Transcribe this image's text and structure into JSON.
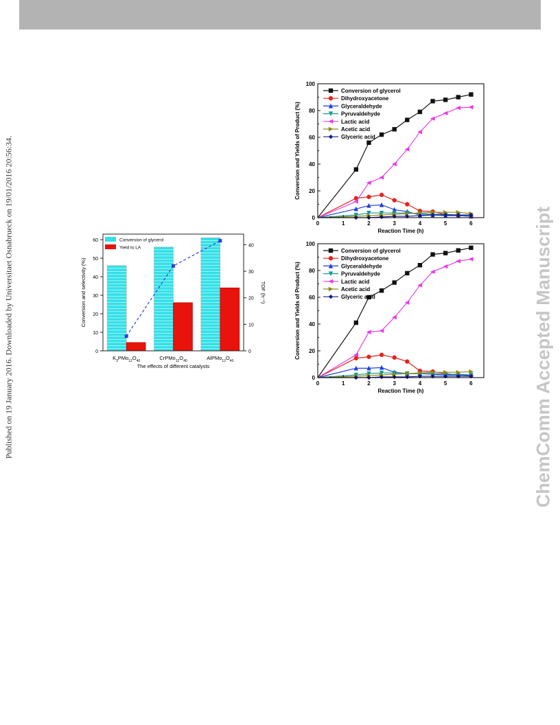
{
  "header": {
    "bar_color": "#b3b3b3"
  },
  "side_left_text": "Published on 19 January 2016. Downloaded by Universitaet Osnabrueck on 19/01/2016 20:56:34.",
  "side_right_text": "ChemComm Accepted Manuscript",
  "chart_data": [
    {
      "type": "bar",
      "xlabel": "The effects of different catalysts",
      "ylabel": "Conversion and selectivity (%)",
      "y2label": "TOF (h⁻¹)",
      "categories": [
        {
          "parts": [
            [
              "K",
              "normal"
            ],
            [
              "3",
              "sub"
            ],
            [
              "PMo",
              "normal"
            ],
            [
              "12",
              "sub"
            ],
            [
              "O",
              "normal"
            ],
            [
              "40",
              "sub"
            ]
          ]
        },
        {
          "parts": [
            [
              "CrPMo",
              "normal"
            ],
            [
              "12",
              "sub"
            ],
            [
              "O",
              "normal"
            ],
            [
              "40",
              "sub"
            ]
          ]
        },
        {
          "parts": [
            [
              "AlPMo",
              "normal"
            ],
            [
              "12",
              "sub"
            ],
            [
              "O",
              "normal"
            ],
            [
              "40",
              "sub"
            ]
          ]
        }
      ],
      "ylim": [
        0,
        63
      ],
      "yticks": [
        0,
        10,
        20,
        30,
        40,
        50,
        60
      ],
      "y2lim": [
        0,
        44
      ],
      "y2ticks": [
        0,
        10,
        20,
        30,
        40
      ],
      "series": [
        {
          "name": "Conversion of glycerol",
          "kind": "bar",
          "color": "#33e0e8",
          "values": [
            46,
            56,
            61
          ]
        },
        {
          "name": "Yield to LA",
          "kind": "bar",
          "color": "#e8130d",
          "values": [
            4.5,
            26,
            34
          ]
        },
        {
          "kind": "line",
          "axis": "y2",
          "color": "#2b3fd6",
          "values": [
            5.5,
            32,
            41.5
          ]
        }
      ],
      "legend_position": "top-left"
    },
    {
      "type": "line",
      "xlabel": "Reaction Time (h)",
      "ylabel": "Conversion and Yields of Product (%)",
      "xlim": [
        0,
        6.5
      ],
      "xticks": [
        0,
        1,
        2,
        3,
        4,
        5,
        6
      ],
      "ylim": [
        0,
        100
      ],
      "yticks": [
        0,
        20,
        40,
        60,
        80,
        100
      ],
      "x": [
        0,
        1.5,
        2,
        2.5,
        3,
        3.5,
        4,
        4.5,
        5,
        5.5,
        6
      ],
      "legend_position": "top-left",
      "series": [
        {
          "name": "Conversion of glycerol",
          "color": "#111111",
          "marker": "square",
          "values": [
            0,
            36,
            56,
            62,
            66,
            73,
            79,
            87,
            88,
            90,
            92
          ]
        },
        {
          "name": "Dihydroxyacetone",
          "color": "#e8231c",
          "marker": "circle",
          "values": [
            0,
            14.5,
            15.5,
            17,
            13,
            10,
            5,
            4.5,
            2.5,
            1.5,
            1
          ]
        },
        {
          "name": "Glyceraldehyde",
          "color": "#1f3ee0",
          "marker": "triangle-up",
          "values": [
            0,
            6.5,
            9,
            9.5,
            6,
            4.5,
            2,
            2,
            1.5,
            1.5,
            1
          ]
        },
        {
          "name": "Pyruvaldehyde",
          "color": "#149b9b",
          "marker": "triangle-down",
          "values": [
            0,
            2,
            3.5,
            3.5,
            3.5,
            3.5,
            3,
            2.5,
            2.5,
            2,
            1.5
          ]
        },
        {
          "name": "Lactic acid",
          "color": "#e63ce6",
          "marker": "triangle-left",
          "values": [
            0,
            12,
            26,
            30,
            40,
            51,
            64,
            74,
            78,
            82,
            82.5
          ]
        },
        {
          "name": "Acetic acid",
          "color": "#8f8a14",
          "marker": "triangle-right",
          "values": [
            0,
            1,
            1.5,
            2,
            2.5,
            3,
            3.5,
            4,
            4,
            4,
            3
          ]
        },
        {
          "name": "Glyceric acid",
          "color": "#141a8c",
          "marker": "diamond",
          "values": [
            0,
            0,
            0,
            0.5,
            1,
            1,
            1.5,
            2,
            2,
            2,
            2
          ]
        }
      ]
    },
    {
      "type": "line",
      "xlabel": "Reaction Time (h)",
      "ylabel": "Conversion and Yields of Product (%)",
      "xlim": [
        0,
        6.5
      ],
      "xticks": [
        0,
        1,
        2,
        3,
        4,
        5,
        6
      ],
      "ylim": [
        0,
        100
      ],
      "yticks": [
        0,
        20,
        40,
        60,
        80,
        100
      ],
      "x": [
        0,
        1.5,
        2,
        2.5,
        3,
        3.5,
        4,
        4.5,
        5,
        5.5,
        6
      ],
      "legend_position": "top-left",
      "series": [
        {
          "name": "Conversion of glycerol",
          "color": "#111111",
          "marker": "square",
          "values": [
            0,
            41,
            60,
            65,
            71,
            78,
            84,
            92,
            93,
            95,
            97
          ]
        },
        {
          "name": "Dihydroxyacetone",
          "color": "#e8231c",
          "marker": "circle",
          "values": [
            0,
            14.5,
            15.5,
            17,
            15,
            12,
            5,
            4.5,
            3,
            2,
            1.5
          ]
        },
        {
          "name": "Glyceraldehyde",
          "color": "#1f3ee0",
          "marker": "triangle-up",
          "values": [
            0,
            7,
            7,
            7.5,
            4,
            3,
            3,
            2.5,
            2,
            2,
            1.5
          ]
        },
        {
          "name": "Pyruvaldehyde",
          "color": "#149b9b",
          "marker": "triangle-down",
          "values": [
            0,
            2,
            3,
            3.5,
            3.5,
            3,
            3,
            3,
            2.5,
            2.5,
            2
          ]
        },
        {
          "name": "Lactic acid",
          "color": "#e63ce6",
          "marker": "triangle-left",
          "values": [
            0,
            17,
            34,
            35,
            45,
            56,
            69,
            79,
            83,
            87,
            88.5
          ]
        },
        {
          "name": "Acetic acid",
          "color": "#8f8a14",
          "marker": "triangle-right",
          "values": [
            0,
            1,
            1.5,
            2,
            2.5,
            3,
            3.5,
            4,
            4,
            4,
            4.5
          ]
        },
        {
          "name": "Glyceric acid",
          "color": "#141a8c",
          "marker": "diamond",
          "values": [
            0,
            0,
            0,
            0.5,
            0.5,
            0.5,
            1,
            1,
            1,
            1,
            1
          ]
        }
      ]
    }
  ]
}
